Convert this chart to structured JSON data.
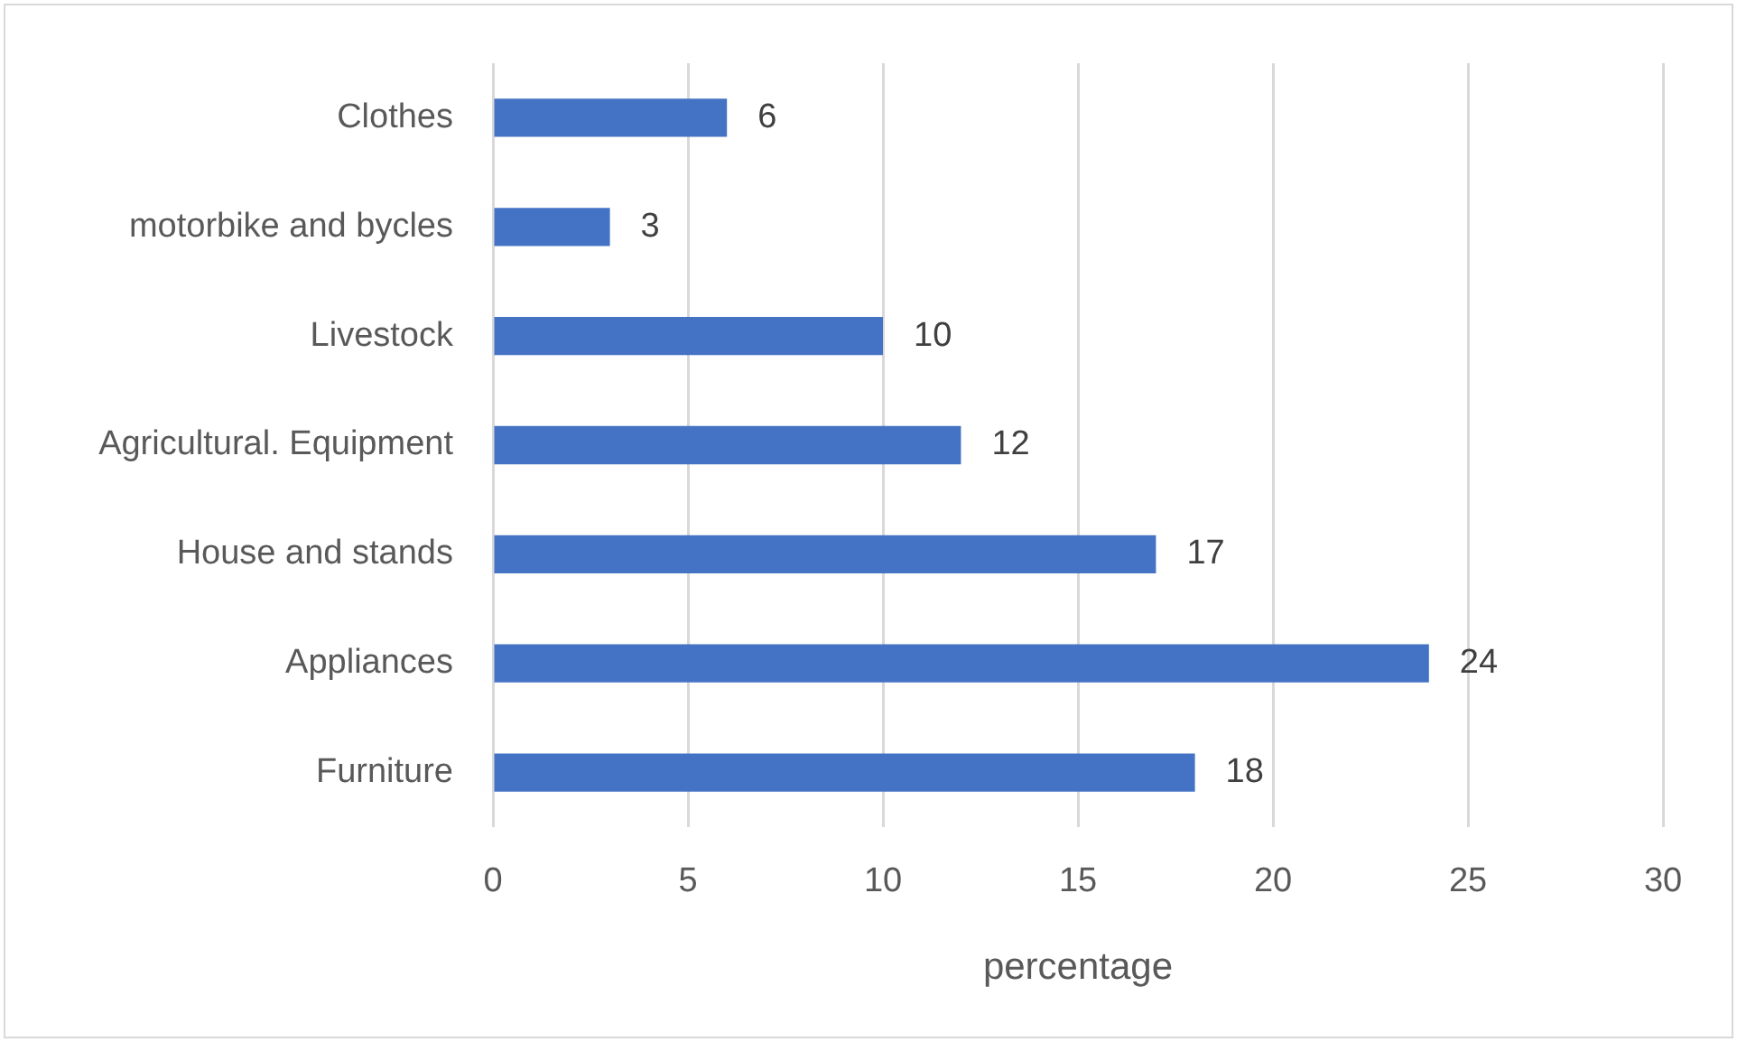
{
  "chart_data": {
    "type": "bar",
    "orientation": "horizontal",
    "categories": [
      "Clothes",
      "motorbike and bycles",
      "Livestock",
      "Agricultural. Equipment",
      "House and stands",
      "Appliances",
      "Furniture"
    ],
    "values": [
      6,
      3,
      10,
      12,
      17,
      24,
      18
    ],
    "color": "#4472c4",
    "xlabel": "percentage",
    "xlim": [
      0,
      30
    ],
    "xticks": [
      0,
      5,
      10,
      15,
      20,
      25,
      30
    ],
    "grid": "x",
    "data_labels": true,
    "legend": false
  }
}
